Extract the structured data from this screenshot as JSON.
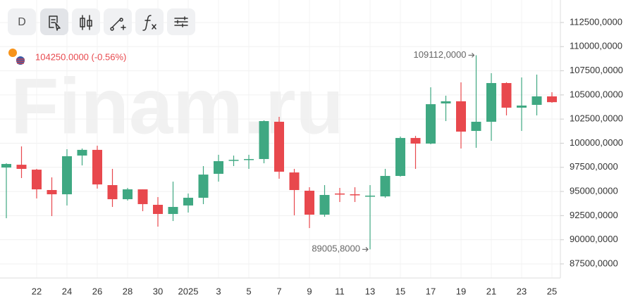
{
  "toolbar": {
    "interval": "D"
  },
  "watermark": "Finam.ru",
  "header": {
    "price": "104250.0000 (-0.56%)"
  },
  "chart_data": {
    "type": "candlestick",
    "categories": [
      null,
      null,
      "22",
      null,
      "24",
      null,
      "26",
      null,
      "28",
      null,
      "30",
      null,
      "2025",
      null,
      "3",
      null,
      "5",
      null,
      "7",
      null,
      "9",
      null,
      "11",
      null,
      "13",
      null,
      "15",
      null,
      "17",
      null,
      "19",
      null,
      "21",
      null,
      "23",
      null,
      "25"
    ],
    "open": [
      97480,
      97770,
      97260,
      95150,
      94710,
      98720,
      99310,
      95660,
      94200,
      95220,
      93620,
      92670,
      93550,
      94350,
      96830,
      98210,
      98280,
      98360,
      102220,
      96970,
      95080,
      92600,
      94790,
      94710,
      94490,
      94490,
      96610,
      100540,
      99960,
      104120,
      104340,
      101270,
      102220,
      106230,
      103680,
      103970,
      104850
    ],
    "high": [
      97920,
      99670,
      97340,
      96460,
      99380,
      99450,
      99740,
      97340,
      95370,
      95220,
      94420,
      96020,
      94790,
      97630,
      98800,
      98720,
      98800,
      102370,
      102730,
      97340,
      95440,
      95660,
      95370,
      95440,
      95660,
      97340,
      100690,
      100760,
      105790,
      104920,
      106300,
      109112,
      107250,
      106300,
      106810,
      107105,
      105280
    ],
    "low": [
      92230,
      96390,
      94280,
      92450,
      93550,
      97700,
      95300,
      93400,
      94060,
      92960,
      91360,
      91940,
      92820,
      93690,
      96020,
      97630,
      97340,
      97920,
      96320,
      92530,
      91210,
      92380,
      93910,
      93910,
      89005.8,
      94350,
      96540,
      97340,
      99890,
      102290,
      99450,
      99520,
      100250,
      102880,
      101270,
      102880,
      104190
    ],
    "close": [
      97850,
      97340,
      95220,
      94710,
      98650,
      99310,
      95730,
      94200,
      95220,
      93690,
      92670,
      93400,
      94350,
      96750,
      98140,
      98280,
      98360,
      102290,
      97050,
      95150,
      92600,
      94640,
      94710,
      94640,
      94570,
      96610,
      100540,
      99960,
      104040,
      104340,
      101200,
      102220,
      106230,
      103680,
      103900,
      104850,
      104250
    ],
    "up_color": "#3fa882",
    "down_color": "#e8484d",
    "ylim": [
      86040,
      114830
    ],
    "yticks": [
      {
        "value": 87500,
        "label": "87500,0000"
      },
      {
        "value": 90000,
        "label": "90000,0000"
      },
      {
        "value": 92500,
        "label": "92500,0000"
      },
      {
        "value": 95000,
        "label": "95000,0000"
      },
      {
        "value": 97500,
        "label": "97500,0000"
      },
      {
        "value": 100000,
        "label": "100000,0000"
      },
      {
        "value": 102500,
        "label": "102500,0000"
      },
      {
        "value": 105000,
        "label": "105000,0000"
      },
      {
        "value": 107500,
        "label": "107500,0000"
      },
      {
        "value": 110000,
        "label": "110000,0000"
      },
      {
        "value": 112500,
        "label": "112500,0000"
      }
    ],
    "grid": true,
    "annotations": [
      {
        "value": 109112,
        "label": "109112,0000"
      },
      {
        "value": 89005.8,
        "label": "89005,8000"
      }
    ]
  }
}
